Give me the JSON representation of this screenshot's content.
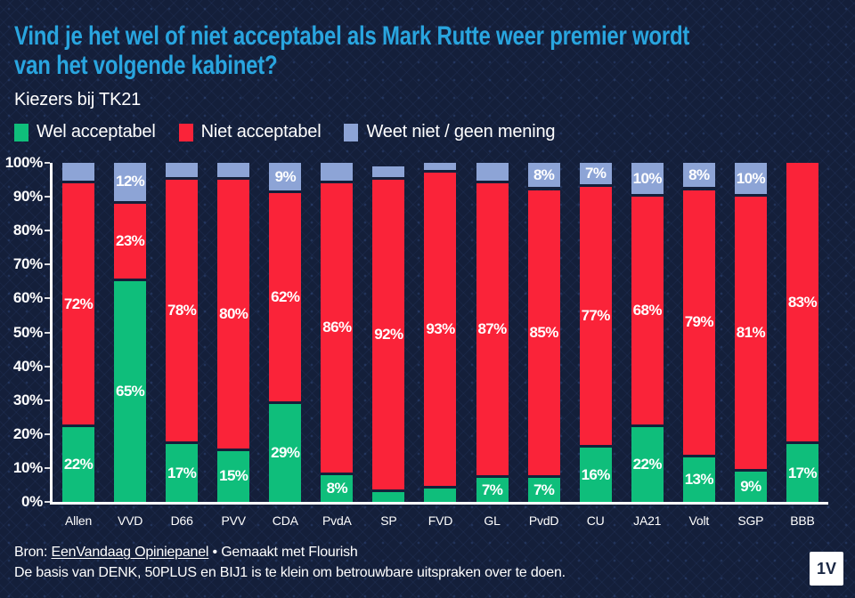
{
  "header": {
    "title_lines": [
      "Vind je het wel of niet acceptabel als Mark Rutte weer premier wordt",
      "van het volgende kabinet?"
    ],
    "subtitle": "Kiezers bij TK21"
  },
  "chart_data": {
    "type": "bar",
    "stacked": true,
    "title": "Vind je het wel of niet acceptabel als Mark Rutte weer premier wordt van het volgende kabinet?",
    "subtitle": "Kiezers bij TK21",
    "unit": "%",
    "ylim": [
      0,
      100
    ],
    "yticks": [
      "100%",
      "90%",
      "80%",
      "70%",
      "60%",
      "50%",
      "40%",
      "30%",
      "20%",
      "10%",
      "0%"
    ],
    "grid": false,
    "legend_position": "top",
    "categories": [
      "Allen",
      "VVD",
      "D66",
      "PVV",
      "CDA",
      "PvdA",
      "SP",
      "FVD",
      "GL",
      "PvdD",
      "CU",
      "JA21",
      "Volt",
      "SGP",
      "BBB"
    ],
    "series": [
      {
        "name": "Wel acceptabel",
        "key": "wel-acceptabel",
        "color": "#0fbe7b",
        "values": [
          22,
          65,
          17,
          15,
          29,
          8,
          3,
          4,
          7,
          7,
          16,
          22,
          13,
          9,
          17
        ],
        "labels": [
          22,
          65,
          17,
          15,
          29,
          8,
          null,
          null,
          7,
          7,
          16,
          22,
          13,
          9,
          17
        ]
      },
      {
        "name": "Niet acceptabel",
        "key": "niet-acceptabel",
        "color": "#fa2339",
        "values": [
          72,
          23,
          78,
          80,
          62,
          86,
          92,
          93,
          87,
          85,
          77,
          68,
          79,
          81,
          83
        ],
        "labels": [
          72,
          23,
          78,
          80,
          62,
          86,
          92,
          93,
          87,
          85,
          77,
          68,
          79,
          81,
          83
        ]
      },
      {
        "name": "Weet niet / geen mening",
        "key": "weet-niet-geen-mening",
        "color": "#8da4d6",
        "values": [
          6,
          12,
          5,
          5,
          9,
          6,
          4,
          3,
          6,
          8,
          7,
          10,
          8,
          10,
          0
        ],
        "labels": [
          null,
          12,
          null,
          null,
          9,
          null,
          null,
          null,
          null,
          8,
          7,
          10,
          8,
          10,
          null
        ]
      }
    ]
  },
  "footer": {
    "source_prefix": "Bron: ",
    "source_link": "EenVandaag Opiniepanel",
    "source_suffix": " • Gemaakt met Flourish",
    "note": "De basis van DENK, 50PLUS en BIJ1 is te klein om betrouwbare uitspraken over te doen.",
    "logo": "1V"
  },
  "colors": {
    "background": "#141f3a",
    "title": "#29a5df",
    "axis": "#ffffff",
    "text": "#ffffff",
    "logo_bg": "#ffffff",
    "logo_text": "#1a2744"
  }
}
